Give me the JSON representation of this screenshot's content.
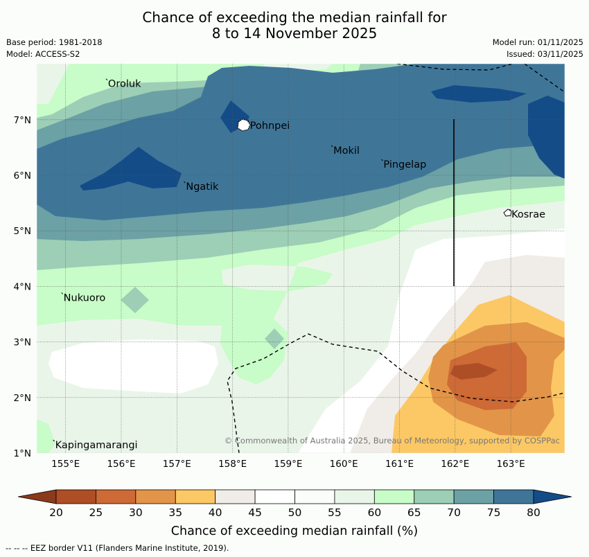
{
  "title": {
    "line1": "Chance of exceeding the median rainfall for",
    "line2": "8 to 14 November 2025"
  },
  "meta_left": {
    "base_period": "Base period: 1981-2018",
    "model": "Model: ACCESS-S2"
  },
  "meta_right": {
    "model_run": "Model run: 01/11/2025",
    "issued": "Issued: 03/11/2025"
  },
  "map": {
    "lon_ticks": [
      "155°E",
      "156°E",
      "157°E",
      "158°E",
      "159°E",
      "160°E",
      "161°E",
      "162°E",
      "163°E"
    ],
    "lat_ticks": [
      "7°N",
      "6°N",
      "5°N",
      "4°N",
      "3°N",
      "2°N",
      "1°N"
    ],
    "places": [
      {
        "name": "Oroluk",
        "lon": 155.75,
        "lat": 7.65
      },
      {
        "name": "Pohnpei",
        "lon": 158.3,
        "lat": 6.9
      },
      {
        "name": "Mokil",
        "lon": 159.8,
        "lat": 6.45
      },
      {
        "name": "Pingelap",
        "lon": 160.7,
        "lat": 6.2
      },
      {
        "name": "Ngatik",
        "lon": 157.15,
        "lat": 5.8
      },
      {
        "name": "Kosrae",
        "lon": 163.0,
        "lat": 5.3
      },
      {
        "name": "Nukuoro",
        "lon": 154.95,
        "lat": 3.8
      },
      {
        "name": "Kapingamarangi",
        "lon": 154.8,
        "lat": 1.15
      }
    ],
    "copyright": "© Commonwealth of Australia 2025, Bureau of Meteorology, supported by COSPPac"
  },
  "colorbar": {
    "ticks": [
      "20",
      "25",
      "30",
      "35",
      "40",
      "45",
      "50",
      "55",
      "60",
      "65",
      "70",
      "75",
      "80"
    ],
    "colors": [
      "#ae4e27",
      "#cd6a35",
      "#e29548",
      "#fcc865",
      "#f0ede8",
      "#ffffff",
      "#fbfdfb",
      "#eaf5ea",
      "#c8fcc8",
      "#9ccfb5",
      "#6ca1a5",
      "#3f7698",
      "#144c88"
    ],
    "label": "Chance of exceeding median rainfall (%)"
  },
  "footer": "--  --  -- EEZ border V11 (Flanders Marine Institute, 2019)."
}
